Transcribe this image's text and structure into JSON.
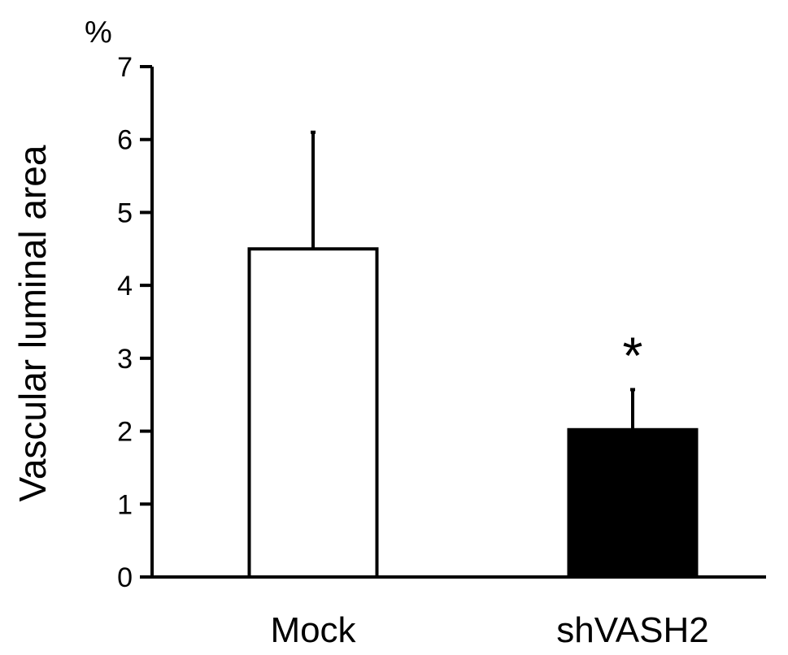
{
  "chart_data": {
    "type": "bar",
    "categories": [
      "Mock",
      "shVASH2"
    ],
    "values": [
      4.5,
      2.02
    ],
    "error_upper": [
      6.1,
      2.57
    ],
    "bar_colors": [
      "#ffffff",
      "#000000"
    ],
    "significance": [
      "",
      "*"
    ],
    "ylabel": "Vascular luminal area",
    "yunit": "%",
    "ylim": [
      0,
      7
    ],
    "yticks": [
      "0",
      "1",
      "2",
      "3",
      "4",
      "5",
      "6",
      "7"
    ],
    "grid": false,
    "legend": "none"
  }
}
